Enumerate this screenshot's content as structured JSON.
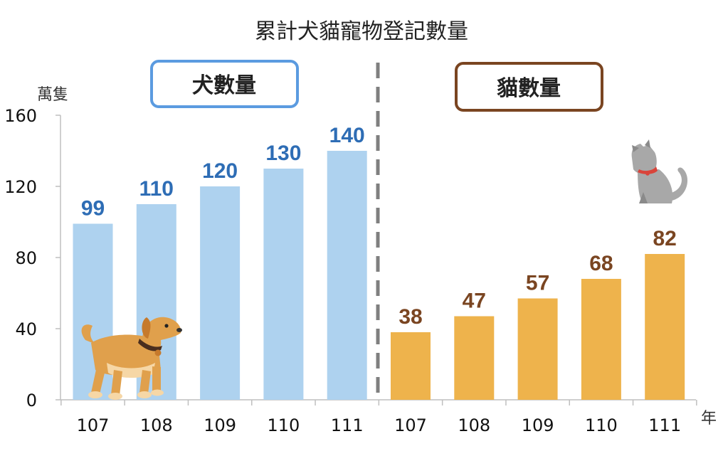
{
  "chart_data": {
    "type": "bar",
    "title": "累計犬貓寵物登記數量",
    "ylabel": "萬隻",
    "xlabel": "年",
    "ylim": [
      0,
      160
    ],
    "yticks": [
      "0",
      "40",
      "80",
      "120",
      "160"
    ],
    "grid": false,
    "series": [
      {
        "name": "犬數量",
        "categories": [
          "107",
          "108",
          "109",
          "110",
          "111"
        ],
        "values": [
          99,
          110,
          120,
          130,
          140
        ],
        "bar_color": "#AED2EF",
        "label_color": "#2E6DB5",
        "box_color": "#5B9BE0"
      },
      {
        "name": "貓數量",
        "categories": [
          "107",
          "108",
          "109",
          "110",
          "111"
        ],
        "values": [
          38,
          47,
          57,
          68,
          82
        ],
        "bar_color": "#EEB34C",
        "label_color": "#7A4521",
        "box_color": "#7A4521"
      }
    ],
    "divider_color": "#7F7F7F",
    "icons": [
      "dog-icon",
      "cat-icon"
    ]
  }
}
